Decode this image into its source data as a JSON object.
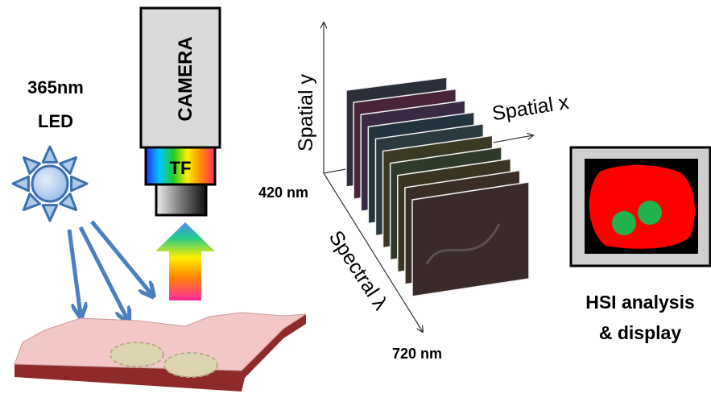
{
  "light_source": {
    "line1": "365nm",
    "line2": "LED"
  },
  "camera": {
    "label": "CAMERA",
    "filter_label": "TF"
  },
  "hypercube": {
    "y_axis_label": "Spatial y",
    "x_axis_label": "Spatial x",
    "spectral_axis_label": "Spectral λ",
    "start_wavelength": "420 nm",
    "end_wavelength": "720 nm"
  },
  "analysis": {
    "line1": "HSI analysis",
    "line2": "& display"
  },
  "colors": {
    "led_arrows": "#4a7fc0",
    "tissue": "#f4c7c7",
    "tissue_edge": "#8e2a2a",
    "display_background": "#ff0000",
    "display_spots": "#22b14c"
  }
}
